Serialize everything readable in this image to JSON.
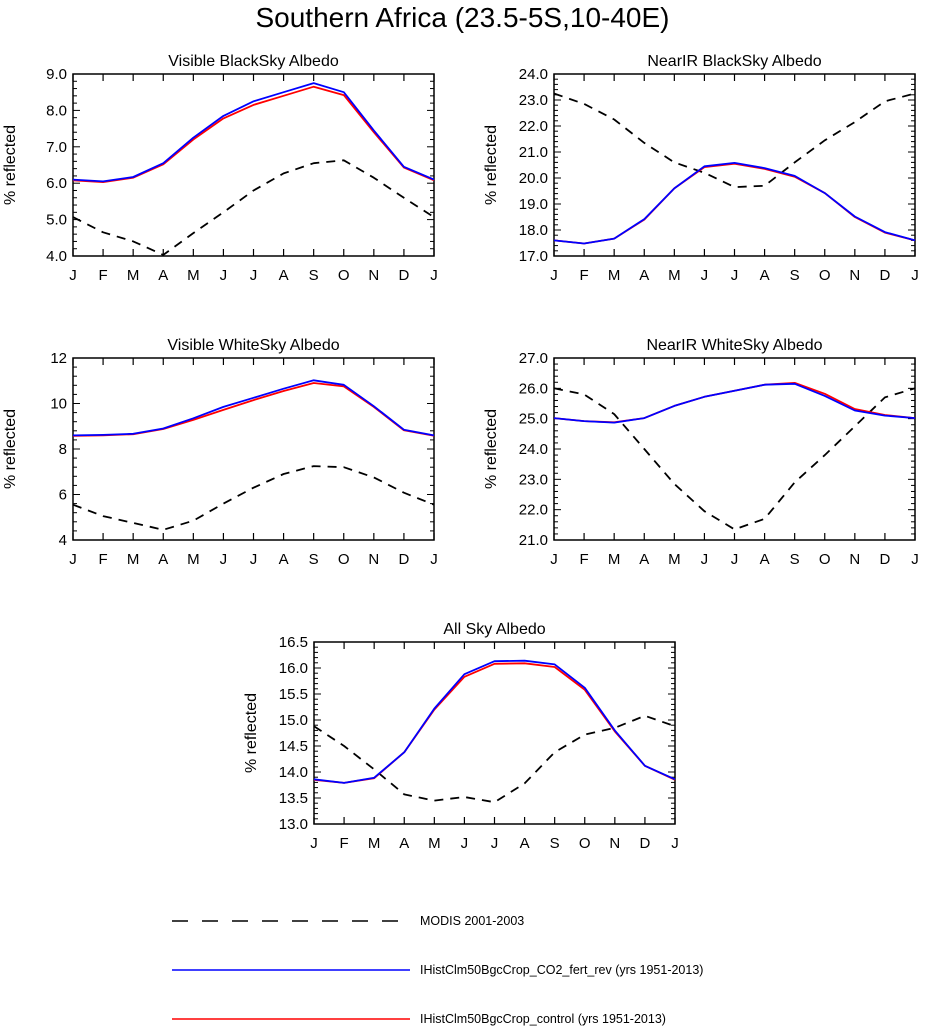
{
  "title": "Southern Africa (23.5-5S,10-40E)",
  "colors": {
    "modis": "#000000",
    "co2_fert_rev": "#0000ff",
    "control": "#ff0000"
  },
  "legend": [
    {
      "label": "MODIS 2001-2003",
      "color": "#000000",
      "dash": true
    },
    {
      "label": "IHistClm50BgcCrop_CO2_fert_rev (yrs 1951-2013)",
      "color": "#0000ff",
      "dash": false
    },
    {
      "label": "IHistClm50BgcCrop_control (yrs 1951-2013)",
      "color": "#ff0000",
      "dash": false
    }
  ],
  "chart_data": [
    {
      "type": "line",
      "title": "Visible BlackSky Albedo",
      "ylabel": "% reflected",
      "x": [
        "J",
        "F",
        "M",
        "A",
        "M",
        "J",
        "J",
        "A",
        "S",
        "O",
        "N",
        "D",
        "J"
      ],
      "ylim": [
        4.0,
        9.0
      ],
      "yticks": [
        "4.0",
        "5.0",
        "6.0",
        "7.0",
        "8.0",
        "9.0"
      ],
      "series": [
        {
          "name": "MODIS 2001-2003",
          "values": [
            5.07,
            4.65,
            4.4,
            4.03,
            4.63,
            5.2,
            5.8,
            6.27,
            6.55,
            6.63,
            6.15,
            5.6,
            5.07
          ]
        },
        {
          "name": "IHistClm50BgcCrop_control (yrs 1951-2013)",
          "values": [
            6.08,
            6.03,
            6.15,
            6.52,
            7.2,
            7.78,
            8.15,
            8.4,
            8.65,
            8.42,
            7.4,
            6.43,
            6.08
          ]
        },
        {
          "name": "IHistClm50BgcCrop_CO2_fert_rev (yrs 1951-2013)",
          "values": [
            6.1,
            6.05,
            6.17,
            6.55,
            7.25,
            7.85,
            8.25,
            8.5,
            8.75,
            8.5,
            7.45,
            6.45,
            6.1
          ]
        }
      ]
    },
    {
      "type": "line",
      "title": "NearIR BlackSky Albedo",
      "ylabel": "% reflected",
      "x": [
        "J",
        "F",
        "M",
        "A",
        "M",
        "J",
        "J",
        "A",
        "S",
        "O",
        "N",
        "D",
        "J"
      ],
      "ylim": [
        17.0,
        24.0
      ],
      "yticks": [
        "17.0",
        "18.0",
        "19.0",
        "20.0",
        "21.0",
        "22.0",
        "23.0",
        "24.0"
      ],
      "series": [
        {
          "name": "MODIS 2001-2003",
          "values": [
            23.25,
            22.85,
            22.25,
            21.35,
            20.6,
            20.2,
            19.65,
            19.7,
            20.6,
            21.45,
            22.15,
            22.95,
            23.25
          ]
        },
        {
          "name": "IHistClm50BgcCrop_control (yrs 1951-2013)",
          "values": [
            17.6,
            17.48,
            17.67,
            18.4,
            19.6,
            20.42,
            20.55,
            20.35,
            20.05,
            19.42,
            18.5,
            17.9,
            17.6
          ]
        },
        {
          "name": "IHistClm50BgcCrop_CO2_fert_rev (yrs 1951-2013)",
          "values": [
            17.6,
            17.48,
            17.67,
            18.42,
            19.6,
            20.45,
            20.58,
            20.38,
            20.08,
            19.42,
            18.52,
            17.92,
            17.6
          ]
        }
      ]
    },
    {
      "type": "line",
      "title": "Visible WhiteSky Albedo",
      "ylabel": "% reflected",
      "x": [
        "J",
        "F",
        "M",
        "A",
        "M",
        "J",
        "J",
        "A",
        "S",
        "O",
        "N",
        "D",
        "J"
      ],
      "ylim": [
        4,
        12
      ],
      "yticks": [
        "4",
        "6",
        "8",
        "10",
        "12"
      ],
      "series": [
        {
          "name": "MODIS 2001-2003",
          "values": [
            5.55,
            5.05,
            4.75,
            4.45,
            4.85,
            5.6,
            6.3,
            6.9,
            7.25,
            7.2,
            6.75,
            6.08,
            5.55
          ]
        },
        {
          "name": "IHistClm50BgcCrop_control (yrs 1951-2013)",
          "values": [
            8.58,
            8.6,
            8.65,
            8.88,
            9.28,
            9.72,
            10.15,
            10.55,
            10.9,
            10.75,
            9.85,
            8.82,
            8.58
          ]
        },
        {
          "name": "IHistClm50BgcCrop_CO2_fert_rev (yrs 1951-2013)",
          "values": [
            8.6,
            8.62,
            8.67,
            8.9,
            9.35,
            9.85,
            10.25,
            10.65,
            11.02,
            10.82,
            9.88,
            8.85,
            8.6
          ]
        }
      ]
    },
    {
      "type": "line",
      "title": "NearIR WhiteSky Albedo",
      "ylabel": "% reflected",
      "x": [
        "J",
        "F",
        "M",
        "A",
        "M",
        "J",
        "J",
        "A",
        "S",
        "O",
        "N",
        "D",
        "J"
      ],
      "ylim": [
        21.0,
        27.0
      ],
      "yticks": [
        "21.0",
        "22.0",
        "23.0",
        "24.0",
        "25.0",
        "26.0",
        "27.0"
      ],
      "series": [
        {
          "name": "MODIS 2001-2003",
          "values": [
            26.0,
            25.8,
            25.15,
            24.0,
            22.85,
            21.95,
            21.35,
            21.7,
            22.9,
            23.8,
            24.75,
            25.7,
            26.0
          ]
        },
        {
          "name": "IHistClm50BgcCrop_control (yrs 1951-2013)",
          "values": [
            25.02,
            24.92,
            24.88,
            25.02,
            25.42,
            25.72,
            25.92,
            26.12,
            26.18,
            25.82,
            25.32,
            25.12,
            25.02
          ]
        },
        {
          "name": "IHistClm50BgcCrop_CO2_fert_rev (yrs 1951-2013)",
          "values": [
            25.02,
            24.92,
            24.87,
            25.02,
            25.42,
            25.72,
            25.92,
            26.12,
            26.15,
            25.75,
            25.27,
            25.1,
            25.02
          ]
        }
      ]
    },
    {
      "type": "line",
      "title": "All Sky Albedo",
      "ylabel": "% reflected",
      "x": [
        "J",
        "F",
        "M",
        "A",
        "M",
        "J",
        "J",
        "A",
        "S",
        "O",
        "N",
        "D",
        "J"
      ],
      "ylim": [
        13.0,
        16.5
      ],
      "yticks": [
        "13.0",
        "13.5",
        "14.0",
        "14.5",
        "15.0",
        "15.5",
        "16.0",
        "16.5"
      ],
      "series": [
        {
          "name": "MODIS 2001-2003",
          "values": [
            14.88,
            14.5,
            14.05,
            13.57,
            13.45,
            13.52,
            13.42,
            13.78,
            14.38,
            14.72,
            14.85,
            15.08,
            14.88
          ]
        },
        {
          "name": "IHistClm50BgcCrop_control (yrs 1951-2013)",
          "values": [
            13.85,
            13.79,
            13.88,
            14.38,
            15.2,
            15.83,
            16.08,
            16.09,
            16.02,
            15.58,
            14.78,
            14.12,
            13.85
          ]
        },
        {
          "name": "IHistClm50BgcCrop_CO2_fert_rev (yrs 1951-2013)",
          "values": [
            13.86,
            13.79,
            13.89,
            14.38,
            15.22,
            15.88,
            16.13,
            16.14,
            16.07,
            15.62,
            14.8,
            14.12,
            13.86
          ]
        }
      ]
    }
  ]
}
